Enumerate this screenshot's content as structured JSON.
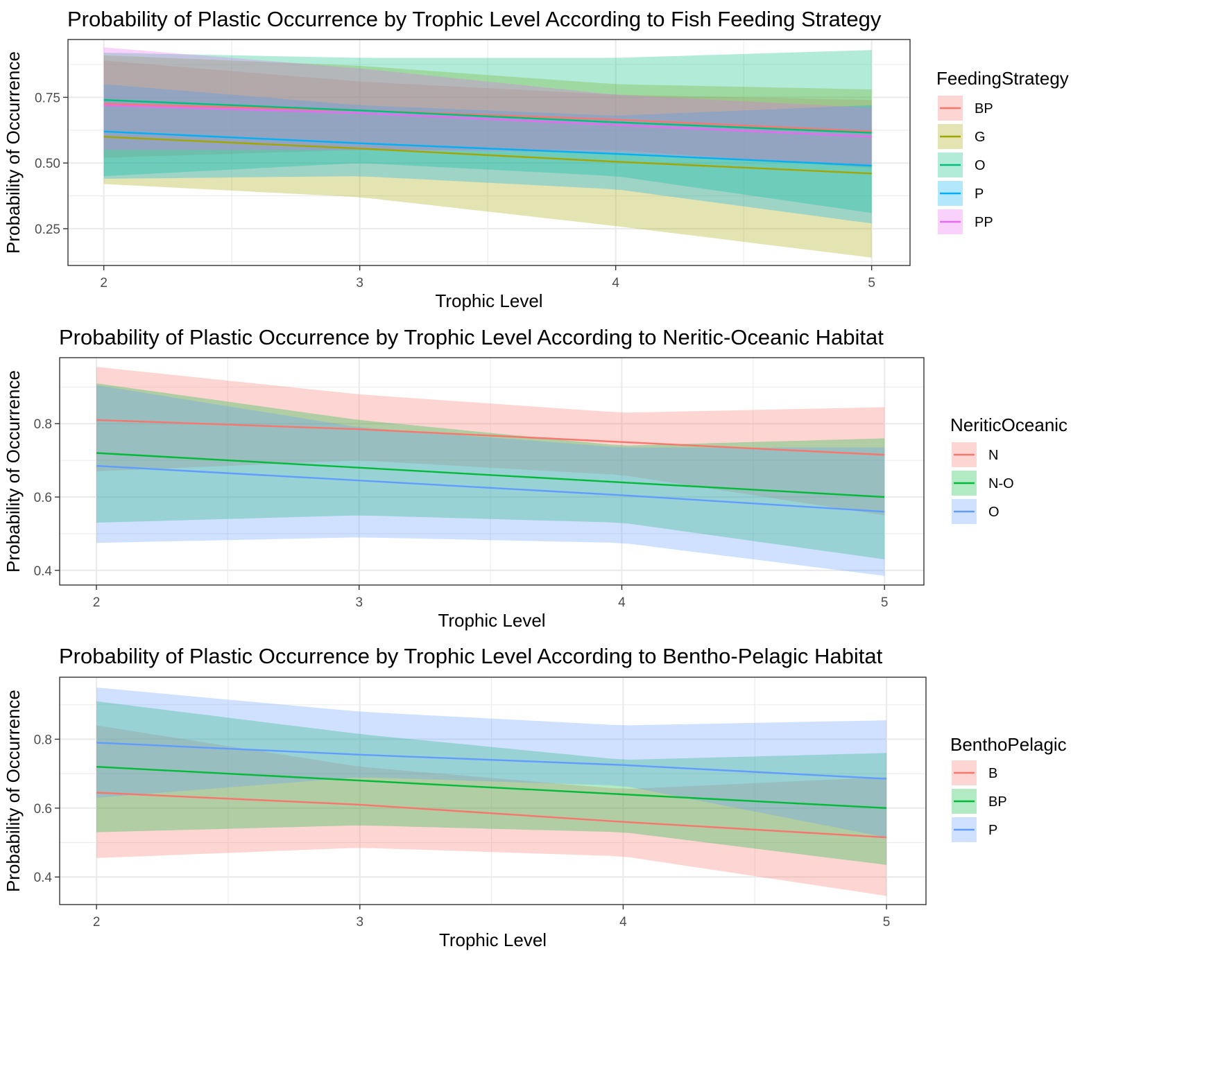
{
  "chart_data": [
    {
      "type": "line",
      "title": "Probability of Plastic Occurrence by Trophic Level According to Fish Feeding Strategy",
      "xlabel": "Trophic Level",
      "ylabel": "Probability of Occurrence",
      "xlim": [
        1.86,
        5.15
      ],
      "ylim": [
        0.11,
        0.97
      ],
      "xticks": [
        2,
        3,
        4,
        5
      ],
      "xtick_labels": [
        "2",
        "3",
        "4",
        "5"
      ],
      "yticks": [
        0.25,
        0.5,
        0.75
      ],
      "ytick_labels": [
        "0.25",
        "0.50",
        "0.75"
      ],
      "grid": true,
      "legend_title": "FeedingStrategy",
      "legend_position": "right",
      "x": [
        2,
        3,
        4,
        5
      ],
      "series": [
        {
          "name": "BP",
          "color": "#F8766D",
          "values": [
            0.725,
            0.7,
            0.665,
            0.62
          ],
          "lower": [
            0.52,
            0.55,
            0.55,
            0.48
          ],
          "upper": [
            0.89,
            0.81,
            0.76,
            0.74
          ]
        },
        {
          "name": "G",
          "color": "#A3A500",
          "values": [
            0.6,
            0.555,
            0.505,
            0.46
          ],
          "lower": [
            0.42,
            0.37,
            0.26,
            0.14
          ],
          "upper": [
            0.91,
            0.87,
            0.8,
            0.78
          ]
        },
        {
          "name": "O",
          "color": "#00BF7D",
          "values": [
            0.74,
            0.7,
            0.655,
            0.615
          ],
          "lower": [
            0.45,
            0.5,
            0.45,
            0.31
          ],
          "upper": [
            0.92,
            0.9,
            0.9,
            0.93
          ]
        },
        {
          "name": "P",
          "color": "#00B0F6",
          "values": [
            0.62,
            0.575,
            0.535,
            0.49
          ],
          "lower": [
            0.44,
            0.45,
            0.4,
            0.27
          ],
          "upper": [
            0.8,
            0.72,
            0.68,
            0.72
          ]
        },
        {
          "name": "PP",
          "color": "#E76BF3",
          "values": [
            0.72,
            0.69,
            0.645,
            0.6
          ],
          "lower": [
            0.55,
            0.55,
            0.54,
            0.49
          ],
          "upper": [
            0.94,
            0.86,
            0.76,
            0.71
          ]
        }
      ]
    },
    {
      "type": "line",
      "title": "Probability of Plastic Occurrence by Trophic Level According to Neritic-Oceanic Habitat",
      "xlabel": "Trophic Level",
      "ylabel": "Probability of Occurrence",
      "xlim": [
        1.86,
        5.15
      ],
      "ylim": [
        0.36,
        0.98
      ],
      "xticks": [
        2,
        3,
        4,
        5
      ],
      "xtick_labels": [
        "2",
        "3",
        "4",
        "5"
      ],
      "yticks": [
        0.4,
        0.6,
        0.8
      ],
      "ytick_labels": [
        "0.4",
        "0.6",
        "0.8"
      ],
      "grid": true,
      "legend_title": "NeriticOceanic",
      "legend_position": "right",
      "x": [
        2,
        3,
        4,
        5
      ],
      "series": [
        {
          "name": "N",
          "color": "#F8766D",
          "values": [
            0.81,
            0.785,
            0.75,
            0.715
          ],
          "lower": [
            0.67,
            0.7,
            0.66,
            0.55
          ],
          "upper": [
            0.955,
            0.88,
            0.83,
            0.845
          ]
        },
        {
          "name": "N-O",
          "color": "#00BA38",
          "values": [
            0.72,
            0.68,
            0.64,
            0.6
          ],
          "lower": [
            0.53,
            0.55,
            0.53,
            0.43
          ],
          "upper": [
            0.91,
            0.81,
            0.74,
            0.76
          ]
        },
        {
          "name": "O",
          "color": "#619CFF",
          "values": [
            0.685,
            0.645,
            0.605,
            0.56
          ],
          "lower": [
            0.475,
            0.49,
            0.475,
            0.385
          ],
          "upper": [
            0.905,
            0.79,
            0.735,
            0.735
          ]
        }
      ]
    },
    {
      "type": "line",
      "title": "Probability of Plastic Occurrence by Trophic Level According to Bentho-Pelagic Habitat",
      "xlabel": "Trophic Level",
      "ylabel": "Probability of Occurrence",
      "xlim": [
        1.86,
        5.15
      ],
      "ylim": [
        0.32,
        0.98
      ],
      "xticks": [
        2,
        3,
        4,
        5
      ],
      "xtick_labels": [
        "2",
        "3",
        "4",
        "5"
      ],
      "yticks": [
        0.4,
        0.6,
        0.8
      ],
      "ytick_labels": [
        "0.4",
        "0.6",
        "0.8"
      ],
      "grid": true,
      "legend_title": "BenthoPelagic",
      "legend_position": "right",
      "x": [
        2,
        3,
        4,
        5
      ],
      "series": [
        {
          "name": "B",
          "color": "#F8766D",
          "values": [
            0.645,
            0.61,
            0.56,
            0.515
          ],
          "lower": [
            0.455,
            0.485,
            0.46,
            0.345
          ],
          "upper": [
            0.84,
            0.72,
            0.655,
            0.69
          ]
        },
        {
          "name": "BP",
          "color": "#00BA38",
          "values": [
            0.72,
            0.68,
            0.64,
            0.6
          ],
          "lower": [
            0.53,
            0.55,
            0.53,
            0.435
          ],
          "upper": [
            0.91,
            0.815,
            0.74,
            0.76
          ]
        },
        {
          "name": "P",
          "color": "#619CFF",
          "values": [
            0.79,
            0.755,
            0.725,
            0.685
          ],
          "lower": [
            0.63,
            0.69,
            0.665,
            0.515
          ],
          "upper": [
            0.95,
            0.88,
            0.84,
            0.855
          ]
        }
      ]
    }
  ]
}
